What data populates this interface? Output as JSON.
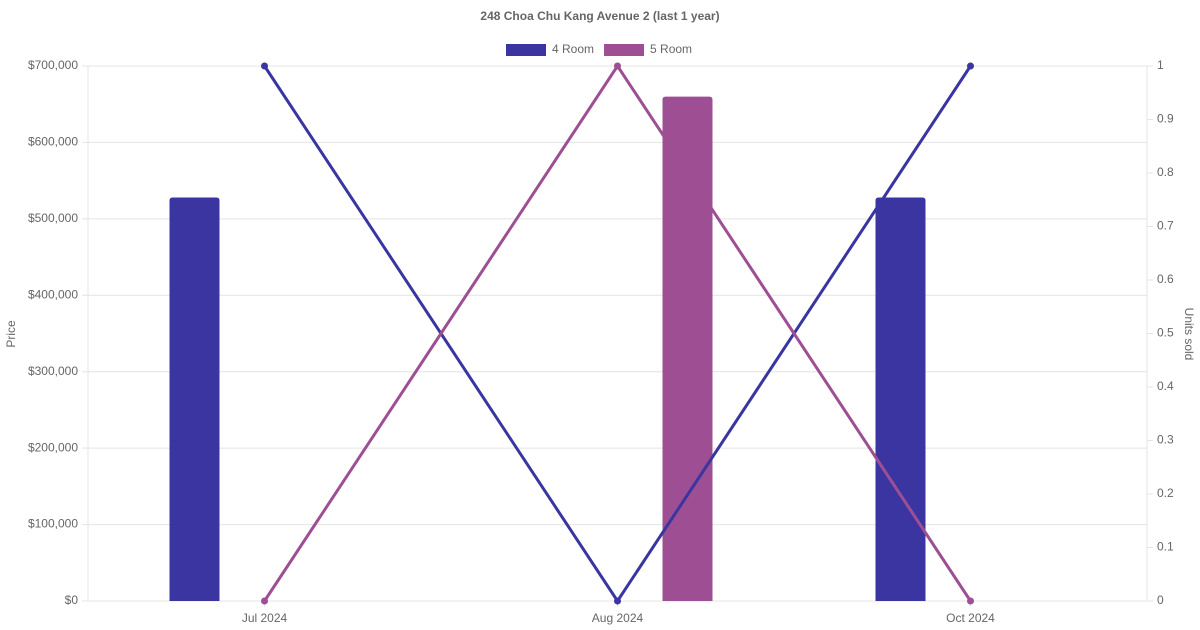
{
  "chart_data": {
    "type": "bar-line",
    "title": "248 Choa Chu Kang Avenue 2 (last 1 year)",
    "categories": [
      "Jul 2024",
      "Aug 2024",
      "Oct 2024"
    ],
    "y_label": "Price",
    "y2_label": "Units sold",
    "series": [
      {
        "name": "4 Room",
        "color": "#3a35a0",
        "values": [
          528000,
          null,
          528000
        ]
      },
      {
        "name": "5 Room",
        "color": "#9e4f93",
        "values": [
          null,
          660000,
          null
        ]
      },
      {
        "color": "#3a35a0",
        "axis": "y2",
        "values": [
          1,
          0,
          1
        ]
      },
      {
        "color": "#9e4f93",
        "axis": "y2",
        "values": [
          0,
          1,
          0
        ]
      }
    ],
    "ylim": [
      0,
      700000
    ],
    "yticks": [
      {
        "value": 0,
        "label": "$0"
      },
      {
        "value": 100000,
        "label": "$100,000"
      },
      {
        "value": 200000,
        "label": "$200,000"
      },
      {
        "value": 300000,
        "label": "$300,000"
      },
      {
        "value": 400000,
        "label": "$400,000"
      },
      {
        "value": 500000,
        "label": "$500,000"
      },
      {
        "value": 600000,
        "label": "$600,000"
      },
      {
        "value": 700000,
        "label": "$700,000"
      }
    ],
    "y2lim": [
      0,
      1
    ],
    "y2ticks": [
      0,
      0.1,
      0.2,
      0.3,
      0.4,
      0.5,
      0.6,
      0.7,
      0.8,
      0.9,
      1
    ],
    "grid": true
  }
}
